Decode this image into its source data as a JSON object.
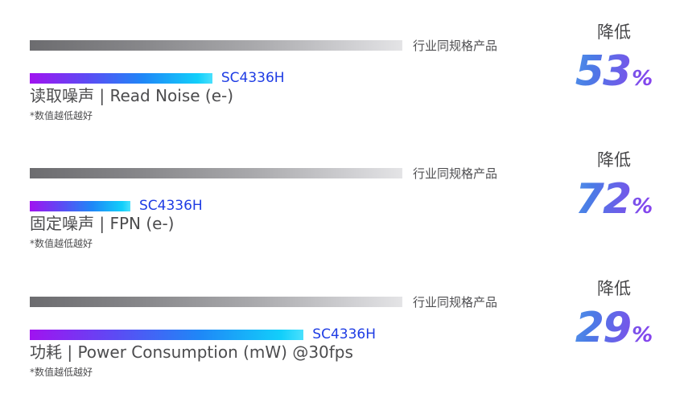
{
  "colors": {
    "product_accent_start": "#a013f0",
    "product_accent_mid": "#1f87f7",
    "product_accent_end": "#12cffa",
    "industry_bar_start": "#6c6c6f",
    "industry_bar_end": "#e4e4e6",
    "product_label_blue": "#1e3ce4",
    "stat_gradient_start": "#58a2ea",
    "stat_gradient_end": "#9136f2",
    "text_gray": "#4c4c4e"
  },
  "chart_data": {
    "type": "bar",
    "orientation": "horizontal",
    "baseline": "industry bar = 100%",
    "grid": false,
    "legend_position": "labels at bar end",
    "groups": [
      {
        "title": "读取噪声 | Read Noise (e-)",
        "note": "*数值越低越好",
        "industry_label": "行业同规格产品",
        "product_label": "SC4336H",
        "industry_value_pct": 100,
        "product_value_pct": 47,
        "product_bar_width_pct": 49,
        "reduction_label": "降低",
        "reduction_value": "53",
        "percent_sign": "%"
      },
      {
        "title": "固定噪声 | FPN (e-)",
        "note": "*数值越低越好",
        "industry_label": "行业同规格产品",
        "product_label": "SC4336H",
        "industry_value_pct": 100,
        "product_value_pct": 28,
        "product_bar_width_pct": 27,
        "reduction_label": "降低",
        "reduction_value": "72",
        "percent_sign": "%"
      },
      {
        "title": "功耗 | Power Consumption (mW) @30fps",
        "note": "*数值越低越好",
        "industry_label": "行业同规格产品",
        "product_label": "SC4336H",
        "industry_value_pct": 100,
        "product_value_pct": 71,
        "product_bar_width_pct": 73.5,
        "reduction_label": "降低",
        "reduction_value": "29",
        "percent_sign": "%"
      }
    ]
  }
}
